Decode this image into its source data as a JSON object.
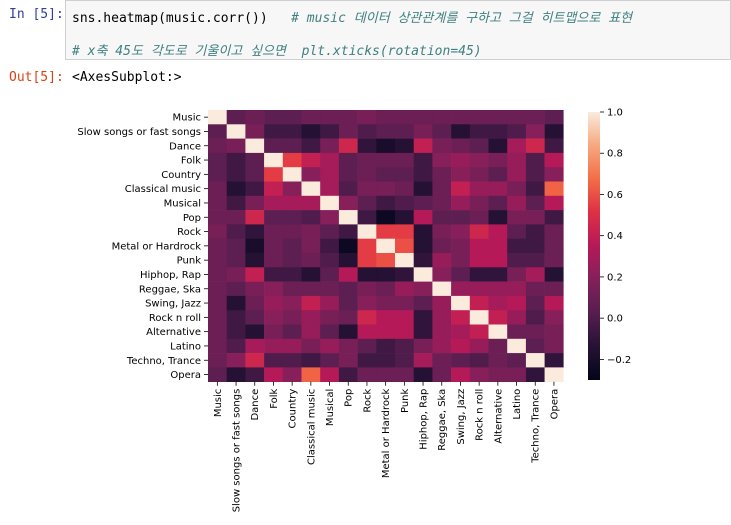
{
  "cell": {
    "in_prompt": "In [5]:",
    "out_prompt": "Out[5]:",
    "code": "sns.heatmap(music.corr())",
    "comment_1": "# music 데이터 상관관계를 구하고 그걸 히트맵으로 표현",
    "comment_2": "# x축 45도 각도로 기울이고 싶으면  plt.xticks(rotation=45)",
    "output": "<AxesSubplot:>"
  },
  "chart_data": {
    "type": "heatmap",
    "labels": [
      "Music",
      "Slow songs or fast songs",
      "Dance",
      "Folk",
      "Country",
      "Classical music",
      "Musical",
      "Pop",
      "Rock",
      "Metal or Hardrock",
      "Punk",
      "Hiphop, Rap",
      "Reggae, Ska",
      "Swing, Jazz",
      "Rock n roll",
      "Alternative",
      "Latino",
      "Techno, Trance",
      "Opera"
    ],
    "matrix": [
      [
        1.0,
        0.05,
        0.1,
        0.05,
        0.05,
        0.1,
        0.1,
        0.1,
        0.15,
        0.1,
        0.1,
        0.1,
        0.1,
        0.1,
        0.1,
        0.1,
        0.1,
        0.1,
        0.05
      ],
      [
        0.05,
        1.0,
        0.15,
        -0.05,
        -0.05,
        -0.15,
        -0.05,
        0.1,
        0.0,
        0.05,
        0.05,
        0.15,
        0.05,
        -0.15,
        -0.05,
        -0.05,
        0.0,
        0.2,
        -0.15
      ],
      [
        0.1,
        0.15,
        1.0,
        0.05,
        0.05,
        -0.05,
        0.15,
        0.45,
        -0.1,
        -0.2,
        -0.15,
        0.4,
        0.15,
        0.1,
        0.05,
        -0.15,
        0.3,
        0.45,
        -0.05
      ],
      [
        0.05,
        -0.05,
        0.05,
        1.0,
        0.55,
        0.4,
        0.3,
        0.05,
        0.1,
        0.1,
        0.1,
        -0.05,
        0.2,
        0.25,
        0.2,
        0.15,
        0.25,
        0.0,
        0.35
      ],
      [
        0.05,
        -0.05,
        0.05,
        0.55,
        1.0,
        0.2,
        0.3,
        0.05,
        0.1,
        0.05,
        0.05,
        -0.05,
        0.1,
        0.2,
        0.15,
        0.05,
        0.25,
        0.0,
        0.2
      ],
      [
        0.1,
        -0.15,
        -0.05,
        0.4,
        0.2,
        1.0,
        0.3,
        0.0,
        0.15,
        0.15,
        0.1,
        -0.15,
        0.1,
        0.4,
        0.25,
        0.25,
        0.15,
        -0.05,
        0.65
      ],
      [
        0.1,
        -0.05,
        0.15,
        0.3,
        0.3,
        0.3,
        1.0,
        0.2,
        0.05,
        -0.05,
        0.0,
        0.05,
        0.1,
        0.25,
        0.15,
        0.05,
        0.25,
        0.05,
        0.35
      ],
      [
        0.1,
        0.1,
        0.45,
        0.05,
        0.05,
        0.0,
        0.2,
        1.0,
        -0.05,
        -0.25,
        -0.15,
        0.35,
        0.05,
        0.05,
        0.1,
        -0.15,
        0.15,
        0.15,
        -0.05
      ],
      [
        0.15,
        0.0,
        -0.1,
        0.1,
        0.1,
        0.15,
        0.05,
        -0.05,
        1.0,
        0.55,
        0.55,
        -0.15,
        0.15,
        0.2,
        0.45,
        0.35,
        0.05,
        -0.05,
        0.1
      ],
      [
        0.1,
        0.05,
        -0.2,
        0.1,
        0.05,
        0.15,
        -0.05,
        -0.25,
        0.55,
        1.0,
        0.6,
        -0.15,
        0.1,
        0.15,
        0.35,
        0.35,
        -0.05,
        -0.05,
        0.1
      ],
      [
        0.1,
        0.05,
        -0.15,
        0.1,
        0.05,
        0.1,
        0.0,
        -0.15,
        0.55,
        0.6,
        1.0,
        -0.1,
        0.25,
        0.15,
        0.35,
        0.35,
        0.0,
        0.0,
        0.1
      ],
      [
        0.1,
        0.15,
        0.4,
        -0.05,
        -0.05,
        -0.15,
        0.05,
        0.35,
        -0.15,
        -0.15,
        -0.1,
        1.0,
        0.2,
        0.05,
        -0.1,
        -0.1,
        0.15,
        0.3,
        -0.15
      ],
      [
        0.1,
        0.05,
        0.15,
        0.2,
        0.1,
        0.1,
        0.1,
        0.05,
        0.15,
        0.1,
        0.25,
        0.2,
        1.0,
        0.25,
        0.25,
        0.25,
        0.25,
        0.1,
        0.1
      ],
      [
        0.1,
        -0.15,
        0.1,
        0.25,
        0.2,
        0.4,
        0.25,
        0.05,
        0.2,
        0.15,
        0.15,
        0.05,
        0.25,
        1.0,
        0.4,
        0.3,
        0.35,
        0.05,
        0.35
      ],
      [
        0.1,
        -0.05,
        0.05,
        0.2,
        0.15,
        0.25,
        0.15,
        0.1,
        0.45,
        0.35,
        0.35,
        -0.1,
        0.25,
        0.4,
        1.0,
        0.4,
        0.25,
        0.0,
        0.2
      ],
      [
        0.1,
        -0.05,
        -0.15,
        0.15,
        0.05,
        0.25,
        0.05,
        -0.15,
        0.35,
        0.35,
        0.35,
        -0.1,
        0.25,
        0.3,
        0.4,
        1.0,
        0.1,
        0.1,
        0.15
      ],
      [
        0.1,
        0.0,
        0.3,
        0.25,
        0.25,
        0.15,
        0.25,
        0.15,
        0.05,
        -0.05,
        0.0,
        0.15,
        0.25,
        0.35,
        0.25,
        0.1,
        1.0,
        0.05,
        0.15
      ],
      [
        0.1,
        0.2,
        0.45,
        0.0,
        0.0,
        -0.05,
        0.05,
        0.15,
        -0.05,
        -0.05,
        0.0,
        0.3,
        0.1,
        0.05,
        0.0,
        0.1,
        0.05,
        1.0,
        -0.1
      ],
      [
        0.05,
        -0.15,
        -0.05,
        0.35,
        0.2,
        0.65,
        0.35,
        -0.05,
        0.1,
        0.1,
        0.1,
        -0.15,
        0.1,
        0.35,
        0.2,
        0.15,
        0.15,
        -0.1,
        1.0
      ]
    ],
    "vmin": -0.3,
    "vmax": 1.0,
    "colorbar_ticks": [
      -0.2,
      0.0,
      0.2,
      0.4,
      0.6,
      0.8,
      1.0
    ],
    "colorbar_tick_labels": [
      "−0.2",
      "0.0",
      "0.2",
      "0.4",
      "0.6",
      "0.8",
      "1.0"
    ]
  }
}
